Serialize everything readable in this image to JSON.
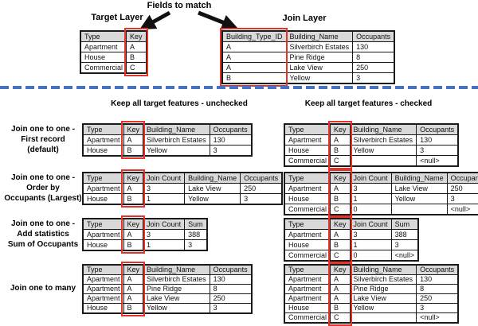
{
  "colors": {
    "accent_red": "#e2342b",
    "divider_blue": "#4472c4",
    "header_gray": "#d9d9d9"
  },
  "top": {
    "fields_to_match_label": "Fields to match",
    "target_layer_label": "Target Layer",
    "join_layer_label": "Join Layer",
    "target_table": {
      "headers": [
        "Type",
        "Key"
      ],
      "rows": [
        [
          "Apartment",
          "A"
        ],
        [
          "House",
          "B"
        ],
        [
          "Commercial",
          "C"
        ]
      ],
      "key_col": 1
    },
    "join_table": {
      "headers": [
        "Building_Type_ID",
        "Building_Name",
        "Occupants"
      ],
      "rows": [
        [
          "A",
          "Silverbirch Estates",
          "130"
        ],
        [
          "A",
          "Pine Ridge",
          "8"
        ],
        [
          "A",
          "Lake View",
          "250"
        ],
        [
          "B",
          "Yellow",
          "3"
        ]
      ],
      "key_col": 0
    }
  },
  "column_headers": {
    "unchecked": "Keep all target features - unchecked",
    "checked": "Keep all target features - checked"
  },
  "sections": [
    {
      "label_lines": [
        "Join one to one -",
        "First record",
        "(default)"
      ],
      "unchecked_table": {
        "headers": [
          "Type",
          "Key",
          "Building_Name",
          "Occupants"
        ],
        "rows": [
          [
            "Apartment",
            "A",
            "Silverbirch Estates",
            "130"
          ],
          [
            "House",
            "B",
            "Yellow",
            "3"
          ]
        ],
        "key_col": 1
      },
      "checked_table": {
        "headers": [
          "Type",
          "Key",
          "Building_Name",
          "Occupants"
        ],
        "rows": [
          [
            "Apartment",
            "A",
            "Silverbirch Estates",
            "130"
          ],
          [
            "House",
            "B",
            "Yellow",
            "3"
          ],
          [
            "Commercial",
            "C",
            "",
            "<null>"
          ]
        ],
        "key_col": 1
      }
    },
    {
      "label_lines": [
        "Join one to one -",
        "Order by",
        "Occupants (Largest)"
      ],
      "unchecked_table": {
        "headers": [
          "Type",
          "Key",
          "Join Count",
          "Building_Name",
          "Occupants"
        ],
        "rows": [
          [
            "Apartment",
            "A",
            "3",
            "Lake View",
            "250"
          ],
          [
            "House",
            "B",
            "1",
            "Yellow",
            "3"
          ]
        ],
        "key_col": 1
      },
      "checked_table": {
        "headers": [
          "Type",
          "Key",
          "Join Count",
          "Building_Name",
          "Occupants"
        ],
        "rows": [
          [
            "Apartment",
            "A",
            "3",
            "Lake View",
            "250"
          ],
          [
            "House",
            "B",
            "1",
            "Yellow",
            "3"
          ],
          [
            "Commercial",
            "C",
            "0",
            "",
            "<null>"
          ]
        ],
        "key_col": 1
      }
    },
    {
      "label_lines": [
        "Join one to one -",
        "Add statistics",
        "Sum of Occupants"
      ],
      "unchecked_table": {
        "headers": [
          "Type",
          "Key",
          "Join Count",
          "Sum"
        ],
        "rows": [
          [
            "Apartment",
            "A",
            "3",
            "388"
          ],
          [
            "House",
            "B",
            "1",
            "3"
          ]
        ],
        "key_col": 1
      },
      "checked_table": {
        "headers": [
          "Type",
          "Key",
          "Join Count",
          "Sum"
        ],
        "rows": [
          [
            "Apartment",
            "A",
            "3",
            "388"
          ],
          [
            "House",
            "B",
            "1",
            "3"
          ],
          [
            "Commercial",
            "C",
            "0",
            "<null>"
          ]
        ],
        "key_col": 1
      }
    },
    {
      "label_lines": [
        "Join one to many"
      ],
      "unchecked_table": {
        "headers": [
          "Type",
          "Key",
          "Building_Name",
          "Occupants"
        ],
        "rows": [
          [
            "Apartment",
            "A",
            "Silverbirch Estates",
            "130"
          ],
          [
            "Apartment",
            "A",
            "Pine Ridge",
            "8"
          ],
          [
            "Apartment",
            "A",
            "Lake View",
            "250"
          ],
          [
            "House",
            "B",
            "Yellow",
            "3"
          ]
        ],
        "key_col": 1
      },
      "checked_table": {
        "headers": [
          "Type",
          "Key",
          "Building_Name",
          "Occupants"
        ],
        "rows": [
          [
            "Apartment",
            "A",
            "Silverbirch Estates",
            "130"
          ],
          [
            "Apartment",
            "A",
            "Pine Ridge",
            "8"
          ],
          [
            "Apartment",
            "A",
            "Lake View",
            "250"
          ],
          [
            "House",
            "B",
            "Yellow",
            "3"
          ],
          [
            "Commercial",
            "C",
            "",
            "<null>"
          ]
        ],
        "key_col": 1
      }
    }
  ]
}
